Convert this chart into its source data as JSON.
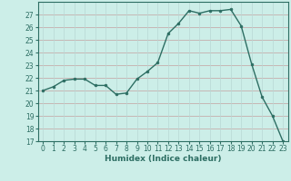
{
  "x": [
    0,
    1,
    2,
    3,
    4,
    5,
    6,
    7,
    8,
    9,
    10,
    11,
    12,
    13,
    14,
    15,
    16,
    17,
    18,
    19,
    20,
    21,
    22,
    23
  ],
  "y": [
    21.0,
    21.3,
    21.8,
    21.9,
    21.9,
    21.4,
    21.4,
    20.7,
    20.8,
    21.9,
    22.5,
    23.2,
    25.5,
    26.3,
    27.3,
    27.1,
    27.3,
    27.3,
    27.4,
    26.1,
    23.1,
    20.5,
    19.0,
    17.0
  ],
  "line_color": "#2d6e63",
  "marker": "o",
  "marker_size": 2.0,
  "bg_color": "#cceee8",
  "hgrid_color": "#c4a0a0",
  "vgrid_color": "#b8d8d4",
  "xlabel": "Humidex (Indice chaleur)",
  "ylim": [
    17,
    28
  ],
  "xlim": [
    -0.5,
    23.5
  ],
  "yticks": [
    17,
    18,
    19,
    20,
    21,
    22,
    23,
    24,
    25,
    26,
    27
  ],
  "xticks": [
    0,
    1,
    2,
    3,
    4,
    5,
    6,
    7,
    8,
    9,
    10,
    11,
    12,
    13,
    14,
    15,
    16,
    17,
    18,
    19,
    20,
    21,
    22,
    23
  ],
  "label_fontsize": 6.5,
  "tick_fontsize": 5.5,
  "linewidth": 1.0
}
